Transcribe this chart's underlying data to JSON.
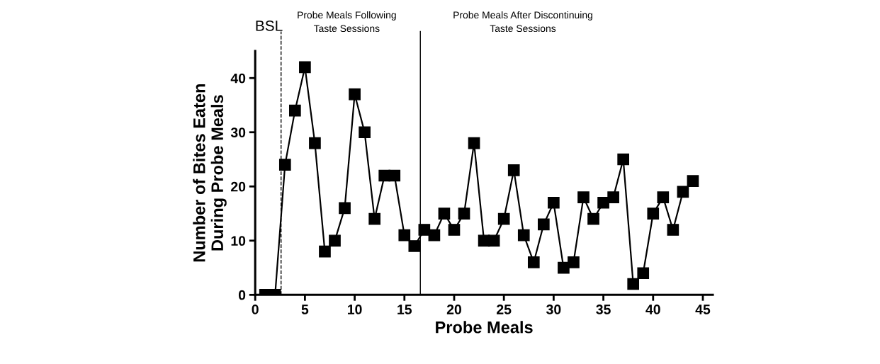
{
  "chart_data": {
    "type": "line",
    "xlabel": "Probe Meals",
    "ylabel": "Number of Bites Eaten\nDuring Probe Meals",
    "x": [
      1,
      2,
      3,
      4,
      5,
      6,
      7,
      8,
      9,
      10,
      11,
      12,
      13,
      14,
      15,
      16,
      17,
      18,
      19,
      20,
      21,
      22,
      23,
      24,
      25,
      26,
      27,
      28,
      29,
      30,
      31,
      32,
      33,
      34,
      35,
      36,
      37,
      38,
      39,
      40,
      41,
      42,
      43,
      44
    ],
    "series": [
      {
        "color": "#000000",
        "values": [
          0,
          0,
          24,
          34,
          42,
          28,
          8,
          10,
          16,
          37,
          30,
          14,
          22,
          22,
          11,
          9,
          12,
          11,
          15,
          12,
          15,
          28,
          10,
          10,
          14,
          23,
          11,
          6,
          13,
          17,
          5,
          6,
          18,
          14,
          17,
          18,
          25,
          2,
          4,
          15,
          18,
          12,
          19,
          21
        ]
      }
    ],
    "xlim": [
      0,
      46
    ],
    "xticks": [
      0,
      5,
      10,
      15,
      20,
      25,
      30,
      35,
      40,
      45
    ],
    "ylim": [
      0,
      45
    ],
    "yticks": [
      0,
      10,
      20,
      30,
      40
    ],
    "marker": "square",
    "line_style": "solid",
    "grid": false,
    "ref_lines": [
      {
        "axis": "x",
        "value": 2.6,
        "line_style": "dashed",
        "color": "#000000"
      },
      {
        "axis": "x",
        "value": 16.6,
        "line_style": "solid",
        "color": "#000000"
      }
    ],
    "annotations": [
      "BSL",
      "Probe Meals Following\nTaste Sessions",
      "Probe Meals After Discontinuing\nTaste Sessions"
    ]
  }
}
